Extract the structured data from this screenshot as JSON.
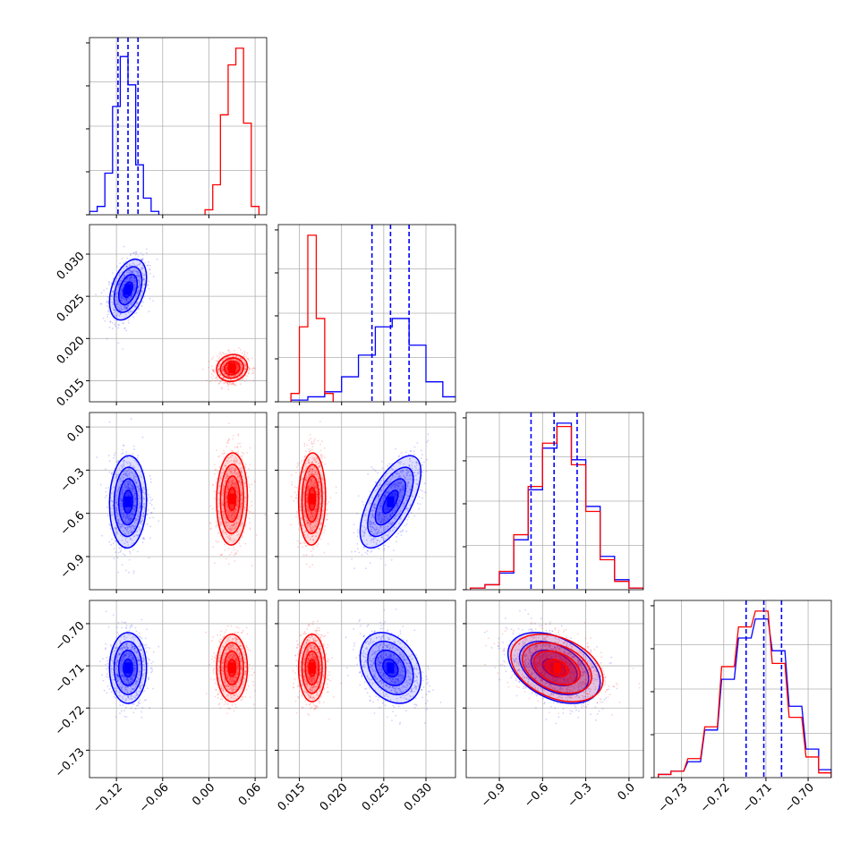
{
  "chart_data": {
    "type": "corner",
    "grid": true,
    "colors": {
      "series_a": "#0000ff",
      "series_b": "#ff0000",
      "grid": "#b0b0b0",
      "axis": "#000000"
    },
    "parameters": [
      {
        "range": [
          -0.155,
          0.075
        ],
        "ticks": [
          "-0.12",
          "-0.06",
          "0.00",
          "0.06"
        ],
        "tick_values": [
          -0.12,
          -0.06,
          0.0,
          0.06
        ]
      },
      {
        "range": [
          0.0125,
          0.0335
        ],
        "ticks": [
          "0.015",
          "0.020",
          "0.025",
          "0.030"
        ],
        "tick_values": [
          0.015,
          0.02,
          0.025,
          0.03
        ]
      },
      {
        "range": [
          -1.13,
          0.1
        ],
        "ticks": [
          "-0.9",
          "-0.6",
          "-0.3",
          "0.0"
        ],
        "tick_values": [
          -0.9,
          -0.6,
          -0.3,
          0.0
        ]
      },
      {
        "range": [
          -0.7365,
          -0.6945
        ],
        "ticks": [
          "-0.73",
          "-0.72",
          "-0.71",
          "-0.70"
        ],
        "tick_values": [
          -0.73,
          -0.72,
          -0.71,
          -0.7
        ]
      }
    ],
    "series": [
      {
        "color": "blue",
        "mean": [
          -0.105,
          0.0258,
          -0.52,
          -0.7105
        ],
        "std": [
          0.012,
          0.0018,
          0.16,
          0.0042
        ]
      },
      {
        "color": "red",
        "mean": [
          0.03,
          0.0165,
          -0.5,
          -0.7105
        ],
        "std": [
          0.01,
          0.0008,
          0.16,
          0.004
        ]
      }
    ],
    "correlations": [
      {
        "pair": [
          1,
          0
        ],
        "blue": 0.4,
        "red": 0.1
      },
      {
        "pair": [
          2,
          0
        ],
        "blue": 0.05,
        "red": 0.05
      },
      {
        "pair": [
          2,
          1
        ],
        "blue": 0.65,
        "red": 0.05
      },
      {
        "pair": [
          3,
          0
        ],
        "blue": 0.0,
        "red": 0.0
      },
      {
        "pair": [
          3,
          1
        ],
        "blue": -0.3,
        "red": 0.0
      },
      {
        "pair": [
          3,
          2
        ],
        "blue": -0.4,
        "red": -0.35
      }
    ],
    "quantile_lines": [
      [
        -0.118,
        -0.105,
        -0.092
      ],
      [
        0.0236,
        0.0258,
        0.028
      ],
      [
        -0.68,
        -0.52,
        -0.36
      ],
      [
        -0.7147,
        -0.7105,
        -0.7063
      ]
    ],
    "histograms": [
      {
        "blue": [
          [
            -0.15,
            0.02
          ],
          [
            -0.14,
            0.05
          ],
          [
            -0.13,
            0.25
          ],
          [
            -0.12,
            0.65
          ],
          [
            -0.11,
            0.95
          ],
          [
            -0.1,
            0.78
          ],
          [
            -0.09,
            0.3
          ],
          [
            -0.08,
            0.1
          ],
          [
            -0.07,
            0.02
          ]
        ],
        "red": [
          [
            0.0,
            0.03
          ],
          [
            0.01,
            0.18
          ],
          [
            0.02,
            0.6
          ],
          [
            0.03,
            0.9
          ],
          [
            0.04,
            1.0
          ],
          [
            0.05,
            0.55
          ],
          [
            0.06,
            0.05
          ]
        ]
      },
      {
        "blue": [
          [
            0.015,
            0.01
          ],
          [
            0.017,
            0.03
          ],
          [
            0.019,
            0.06
          ],
          [
            0.021,
            0.15
          ],
          [
            0.023,
            0.28
          ],
          [
            0.025,
            0.45
          ],
          [
            0.027,
            0.5
          ],
          [
            0.029,
            0.34
          ],
          [
            0.031,
            0.12
          ],
          [
            0.033,
            0.03
          ]
        ],
        "red": [
          [
            0.0145,
            0.05
          ],
          [
            0.0155,
            0.45
          ],
          [
            0.0165,
            1.0
          ],
          [
            0.0175,
            0.5
          ],
          [
            0.0185,
            0.05
          ]
        ]
      },
      {
        "blue": [
          [
            -1.05,
            0.01
          ],
          [
            -0.95,
            0.03
          ],
          [
            -0.85,
            0.1
          ],
          [
            -0.75,
            0.3
          ],
          [
            -0.65,
            0.6
          ],
          [
            -0.55,
            0.85
          ],
          [
            -0.45,
            1.0
          ],
          [
            -0.35,
            0.78
          ],
          [
            -0.25,
            0.5
          ],
          [
            -0.15,
            0.2
          ],
          [
            -0.05,
            0.06
          ],
          [
            0.05,
            0.01
          ]
        ],
        "red": [
          [
            -1.05,
            0.01
          ],
          [
            -0.95,
            0.03
          ],
          [
            -0.85,
            0.11
          ],
          [
            -0.75,
            0.33
          ],
          [
            -0.65,
            0.62
          ],
          [
            -0.55,
            0.88
          ],
          [
            -0.45,
            0.98
          ],
          [
            -0.35,
            0.75
          ],
          [
            -0.25,
            0.47
          ],
          [
            -0.15,
            0.18
          ],
          [
            -0.05,
            0.05
          ],
          [
            0.05,
            0.01
          ]
        ]
      },
      {
        "blue": [
          [
            -0.734,
            0.02
          ],
          [
            -0.731,
            0.04
          ],
          [
            -0.727,
            0.1
          ],
          [
            -0.723,
            0.3
          ],
          [
            -0.719,
            0.62
          ],
          [
            -0.715,
            0.88
          ],
          [
            -0.711,
            1.0
          ],
          [
            -0.707,
            0.8
          ],
          [
            -0.703,
            0.45
          ],
          [
            -0.699,
            0.18
          ],
          [
            -0.696,
            0.05
          ]
        ],
        "red": [
          [
            -0.734,
            0.02
          ],
          [
            -0.731,
            0.04
          ],
          [
            -0.727,
            0.12
          ],
          [
            -0.723,
            0.32
          ],
          [
            -0.719,
            0.7
          ],
          [
            -0.715,
            0.95
          ],
          [
            -0.711,
            1.05
          ],
          [
            -0.707,
            0.72
          ],
          [
            -0.703,
            0.38
          ],
          [
            -0.699,
            0.13
          ],
          [
            -0.696,
            0.03
          ]
        ]
      }
    ]
  }
}
